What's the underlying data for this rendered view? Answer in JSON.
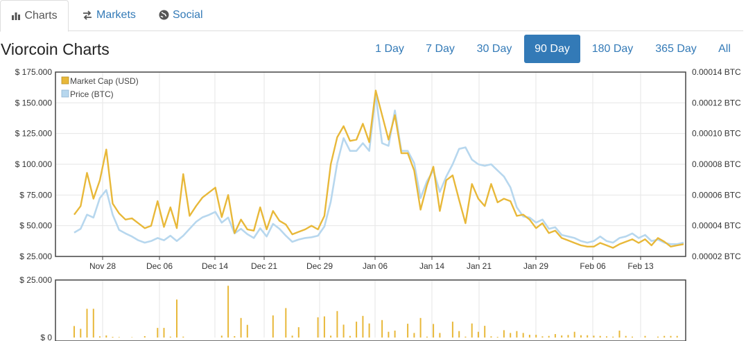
{
  "tabs": [
    {
      "label": "Charts",
      "icon": "bar-chart-icon"
    },
    {
      "label": "Markets",
      "icon": "exchange-arrows-icon"
    },
    {
      "label": "Social",
      "icon": "globe-icon"
    }
  ],
  "page_title": "Viorcoin Charts",
  "ranges": [
    "1 Day",
    "7 Day",
    "30 Day",
    "90 Day",
    "180 Day",
    "365 Day",
    "All"
  ],
  "active_range": "90 Day",
  "colors": {
    "market_cap": "#e8b839",
    "price": "#b7d7ee",
    "link": "#337ab7",
    "axis": "#333333",
    "grid": "#e6e6e6"
  },
  "chart_data": [
    {
      "type": "line",
      "x_ticks": [
        "Nov 28",
        "Dec 06",
        "Dec 14",
        "Dec 21",
        "Dec 29",
        "Jan 06",
        "Jan 14",
        "Jan 21",
        "Jan 29",
        "Feb 06",
        "Feb 13"
      ],
      "left_axis": {
        "ticks": [
          "$ 25.000",
          "$ 50.000",
          "$ 75.000",
          "$ 100.000",
          "$ 125.000",
          "$ 150.000",
          "$ 175.000"
        ],
        "ylim": [
          25000,
          175000
        ]
      },
      "right_axis": {
        "ticks": [
          "0.00002 BTC",
          "0.00004 BTC",
          "0.00006 BTC",
          "0.00008 BTC",
          "0.00010 BTC",
          "0.00012 BTC",
          "0.00014 BTC"
        ],
        "ylim": [
          2e-05,
          0.00014
        ]
      },
      "legend_position": "top-left",
      "series": [
        {
          "name": "Market Cap (USD)",
          "axis": "left",
          "color": "#e8b839",
          "values": [
            59000,
            66000,
            93000,
            72000,
            87000,
            112000,
            68000,
            60000,
            55000,
            56000,
            52000,
            48000,
            50000,
            70000,
            49000,
            65000,
            48000,
            92000,
            58000,
            66000,
            73000,
            77000,
            81000,
            57000,
            75000,
            44000,
            55000,
            47000,
            46000,
            65000,
            47000,
            62000,
            54000,
            51000,
            43000,
            45000,
            47000,
            50000,
            47000,
            58000,
            100000,
            122000,
            131000,
            119000,
            120000,
            133000,
            118000,
            160000,
            140000,
            120000,
            140000,
            109000,
            109000,
            95000,
            63000,
            83000,
            98000,
            62000,
            87000,
            91000,
            71000,
            52000,
            84000,
            72000,
            66000,
            84000,
            69000,
            72000,
            70000,
            58000,
            59000,
            55000,
            48000,
            52000,
            44000,
            46000,
            40000,
            38000,
            36000,
            34000,
            33000,
            33000,
            36000,
            34000,
            32000,
            35000,
            37000,
            39000,
            36000,
            39000,
            34000,
            40000,
            37000,
            33000,
            34000,
            35000
          ]
        },
        {
          "name": "Price (BTC)",
          "axis": "right",
          "color": "#b7d7ee",
          "values": [
            3.55e-05,
            3.8e-05,
            4.72e-05,
            4.53e-05,
            5.8e-05,
            6.32e-05,
            4.72e-05,
            3.73e-05,
            3.5e-05,
            3.3e-05,
            3.05e-05,
            2.9e-05,
            3e-05,
            3.2e-05,
            3.05e-05,
            3.35e-05,
            3e-05,
            3.35e-05,
            3.8e-05,
            4.25e-05,
            4.55e-05,
            4.7e-05,
            4.9e-05,
            4.2e-05,
            4.53e-05,
            3.5e-05,
            3.8e-05,
            3.45e-05,
            3.2e-05,
            3.83e-05,
            3.3e-05,
            4.12e-05,
            3.8e-05,
            3.35e-05,
            2.95e-05,
            3.1e-05,
            3.2e-05,
            3.25e-05,
            3.35e-05,
            3.95e-05,
            5.57e-05,
            8.07e-05,
            9.7e-05,
            8.87e-05,
            8.87e-05,
            9.37e-05,
            8.87e-05,
            0.000125,
            9.37e-05,
            9.2e-05,
            0.000115,
            8.87e-05,
            8.87e-05,
            8.07e-05,
            5.8e-05,
            6.9e-05,
            7.6e-05,
            6.2e-05,
            7.2e-05,
            8e-05,
            9e-05,
            9.1e-05,
            8.3e-05,
            8e-05,
            7.9e-05,
            8e-05,
            7.6e-05,
            7.2e-05,
            6.5e-05,
            5.2e-05,
            4.6e-05,
            4.53e-05,
            4.2e-05,
            4.4e-05,
            3.8e-05,
            3.9e-05,
            3.4e-05,
            3.3e-05,
            3.2e-05,
            3e-05,
            2.9e-05,
            3e-05,
            3.3e-05,
            3e-05,
            2.9e-05,
            3.2e-05,
            3.3e-05,
            3.5e-05,
            3.2e-05,
            3.4e-05,
            3e-05,
            3.1e-05,
            2.9e-05,
            2.8e-05,
            2.8e-05,
            2.9e-05
          ]
        }
      ]
    },
    {
      "type": "bar",
      "y_ticks": [
        "$ 0",
        "$ 25.000"
      ],
      "ylim": [
        0,
        25000
      ],
      "color": "#e8b839",
      "series": [
        {
          "values": [
            5000,
            3800,
            12500,
            12500,
            500,
            900,
            300,
            200,
            0,
            150,
            0,
            600,
            0,
            4200,
            4200,
            400,
            16500,
            400,
            0,
            0,
            0,
            0,
            0,
            800,
            22500,
            600,
            8500,
            5500,
            0,
            0,
            0,
            9600,
            0,
            12800,
            800,
            4500,
            0,
            0,
            8800,
            9200,
            800,
            11500,
            5600,
            700,
            6900,
            9400,
            6100,
            0,
            7600,
            2500,
            3000,
            0,
            6000,
            2000,
            8500,
            400,
            5900,
            2000,
            0,
            6900,
            2800,
            400,
            6100,
            2500,
            5100,
            500,
            300,
            3200,
            2000,
            2800,
            2000,
            1200,
            1200,
            500,
            700,
            1500,
            900,
            1100,
            2500,
            1000,
            1000,
            800,
            700,
            500,
            400,
            3000,
            700,
            400,
            0,
            700,
            0,
            400,
            700,
            700,
            700,
            0
          ]
        }
      ]
    }
  ]
}
